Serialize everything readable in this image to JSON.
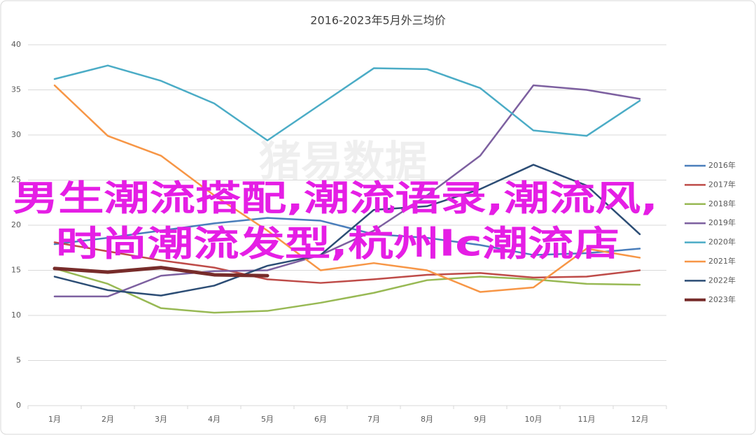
{
  "chart_data": {
    "type": "line",
    "title": "2016-2023年5月外三均价",
    "watermark": "猪易数据",
    "annotations": [
      "男生潮流搭配,潮流语录,潮流风,",
      "时尚潮流发型,杭州lc潮流店"
    ],
    "categories": [
      "1月",
      "2月",
      "3月",
      "4月",
      "5月",
      "6月",
      "7月",
      "8月",
      "9月",
      "10月",
      "11月",
      "12月"
    ],
    "ylim": [
      0,
      40
    ],
    "yticks": [
      0,
      5,
      10,
      15,
      20,
      25,
      30,
      35,
      40
    ],
    "grid": true,
    "legend": "right",
    "series": [
      {
        "name": "2016年",
        "color": "#4a7ebb",
        "values": [
          17.9,
          18.6,
          19.4,
          20.2,
          20.8,
          20.5,
          19.0,
          18.6,
          17.8,
          16.7,
          16.9,
          17.4
        ]
      },
      {
        "name": "2017年",
        "color": "#be4b48",
        "values": [
          18.1,
          17.1,
          16.1,
          15.3,
          14.0,
          13.6,
          14.0,
          14.5,
          14.7,
          14.2,
          14.3,
          15.0
        ]
      },
      {
        "name": "2018年",
        "color": "#98b954",
        "values": [
          15.2,
          13.5,
          10.8,
          10.3,
          10.5,
          11.4,
          12.5,
          13.9,
          14.3,
          14.0,
          13.5,
          13.4
        ]
      },
      {
        "name": "2019年",
        "color": "#7d60a0",
        "values": [
          12.1,
          12.1,
          14.4,
          14.9,
          15.0,
          16.7,
          19.4,
          23.3,
          27.7,
          35.5,
          35.0,
          34.0
        ]
      },
      {
        "name": "2020年",
        "color": "#4bacc6",
        "values": [
          36.2,
          37.7,
          36.0,
          33.5,
          29.4,
          33.4,
          37.4,
          37.3,
          35.2,
          30.5,
          29.9,
          33.8
        ]
      },
      {
        "name": "2021年",
        "color": "#f79646",
        "values": [
          35.5,
          29.9,
          27.7,
          23.3,
          19.4,
          15.0,
          15.8,
          15.0,
          12.6,
          13.1,
          17.4,
          16.4
        ]
      },
      {
        "name": "2022年",
        "color": "#2c4d75",
        "values": [
          14.3,
          12.8,
          12.2,
          13.3,
          15.5,
          16.7,
          21.7,
          22.1,
          24.0,
          26.7,
          24.4,
          19.0
        ]
      },
      {
        "name": "2023年",
        "color": "#772c2a",
        "values": [
          15.2,
          14.8,
          15.3,
          14.5,
          14.4,
          null,
          null,
          null,
          null,
          null,
          null,
          null
        ]
      }
    ]
  }
}
